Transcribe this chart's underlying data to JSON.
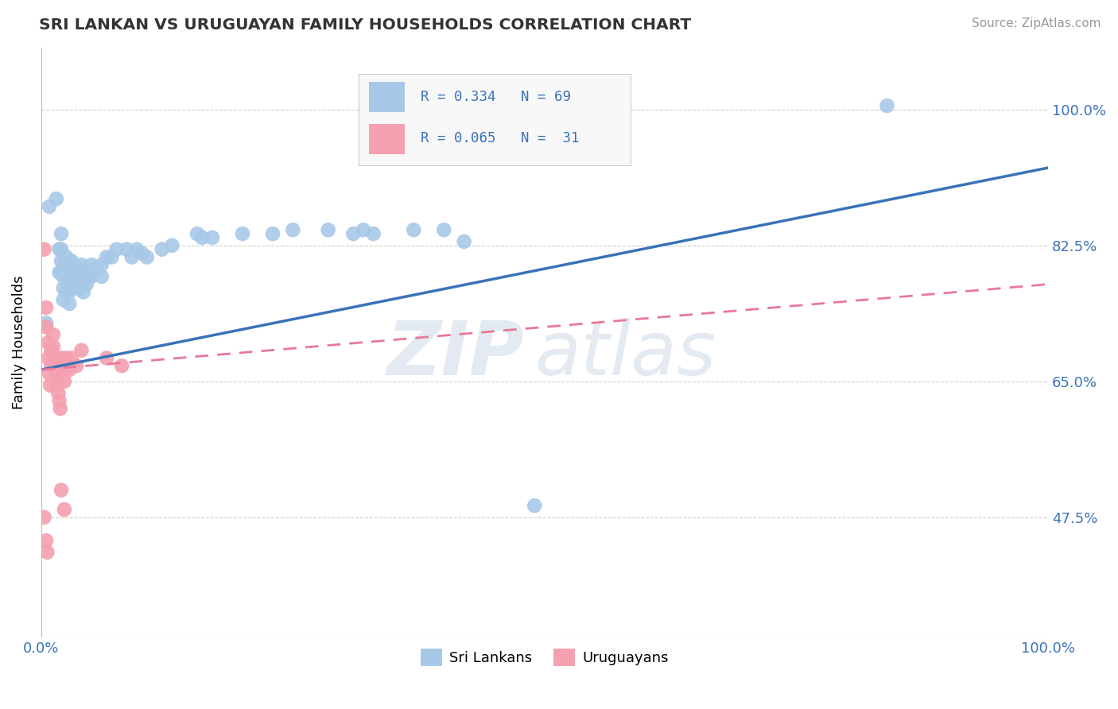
{
  "title": "SRI LANKAN VS URUGUAYAN FAMILY HOUSEHOLDS CORRELATION CHART",
  "source": "Source: ZipAtlas.com",
  "ylabel": "Family Households",
  "ytick_labels": [
    "100.0%",
    "82.5%",
    "65.0%",
    "47.5%"
  ],
  "ytick_values": [
    1.0,
    0.825,
    0.65,
    0.475
  ],
  "xlim": [
    0.0,
    1.0
  ],
  "ylim": [
    0.32,
    1.08
  ],
  "sri_color": "#a8c8e8",
  "uru_color": "#f4a0b0",
  "sri_line_color": "#3a72b8",
  "uru_line_color": "#e87898",
  "sri_line": [
    [
      0.0,
      0.665
    ],
    [
      1.0,
      0.925
    ]
  ],
  "uru_line": [
    [
      0.0,
      0.665
    ],
    [
      1.0,
      0.775
    ]
  ],
  "watermark_zip": "ZIP",
  "watermark_atlas": "atlas",
  "sri_lankans": [
    [
      0.005,
      0.725
    ],
    [
      0.008,
      0.875
    ],
    [
      0.015,
      0.885
    ],
    [
      0.018,
      0.82
    ],
    [
      0.018,
      0.79
    ],
    [
      0.02,
      0.84
    ],
    [
      0.02,
      0.82
    ],
    [
      0.02,
      0.805
    ],
    [
      0.02,
      0.79
    ],
    [
      0.022,
      0.8
    ],
    [
      0.022,
      0.785
    ],
    [
      0.022,
      0.77
    ],
    [
      0.022,
      0.755
    ],
    [
      0.025,
      0.81
    ],
    [
      0.025,
      0.795
    ],
    [
      0.025,
      0.78
    ],
    [
      0.025,
      0.765
    ],
    [
      0.028,
      0.795
    ],
    [
      0.028,
      0.78
    ],
    [
      0.028,
      0.765
    ],
    [
      0.028,
      0.75
    ],
    [
      0.03,
      0.805
    ],
    [
      0.03,
      0.79
    ],
    [
      0.03,
      0.775
    ],
    [
      0.033,
      0.8
    ],
    [
      0.033,
      0.785
    ],
    [
      0.033,
      0.77
    ],
    [
      0.035,
      0.795
    ],
    [
      0.035,
      0.78
    ],
    [
      0.038,
      0.79
    ],
    [
      0.038,
      0.775
    ],
    [
      0.04,
      0.8
    ],
    [
      0.04,
      0.785
    ],
    [
      0.04,
      0.77
    ],
    [
      0.042,
      0.78
    ],
    [
      0.042,
      0.765
    ],
    [
      0.045,
      0.79
    ],
    [
      0.045,
      0.775
    ],
    [
      0.048,
      0.785
    ],
    [
      0.05,
      0.8
    ],
    [
      0.05,
      0.785
    ],
    [
      0.055,
      0.795
    ],
    [
      0.06,
      0.8
    ],
    [
      0.06,
      0.785
    ],
    [
      0.065,
      0.81
    ],
    [
      0.07,
      0.81
    ],
    [
      0.075,
      0.82
    ],
    [
      0.085,
      0.82
    ],
    [
      0.09,
      0.81
    ],
    [
      0.095,
      0.82
    ],
    [
      0.1,
      0.815
    ],
    [
      0.105,
      0.81
    ],
    [
      0.12,
      0.82
    ],
    [
      0.13,
      0.825
    ],
    [
      0.155,
      0.84
    ],
    [
      0.16,
      0.835
    ],
    [
      0.17,
      0.835
    ],
    [
      0.2,
      0.84
    ],
    [
      0.23,
      0.84
    ],
    [
      0.25,
      0.845
    ],
    [
      0.285,
      0.845
    ],
    [
      0.31,
      0.84
    ],
    [
      0.32,
      0.845
    ],
    [
      0.33,
      0.84
    ],
    [
      0.37,
      0.845
    ],
    [
      0.4,
      0.845
    ],
    [
      0.42,
      0.83
    ],
    [
      0.49,
      0.49
    ],
    [
      0.84,
      1.005
    ]
  ],
  "uruguayans": [
    [
      0.003,
      0.82
    ],
    [
      0.005,
      0.745
    ],
    [
      0.005,
      0.72
    ],
    [
      0.007,
      0.7
    ],
    [
      0.007,
      0.68
    ],
    [
      0.008,
      0.66
    ],
    [
      0.009,
      0.645
    ],
    [
      0.01,
      0.69
    ],
    [
      0.01,
      0.67
    ],
    [
      0.012,
      0.71
    ],
    [
      0.012,
      0.695
    ],
    [
      0.013,
      0.68
    ],
    [
      0.014,
      0.665
    ],
    [
      0.015,
      0.655
    ],
    [
      0.016,
      0.645
    ],
    [
      0.017,
      0.635
    ],
    [
      0.018,
      0.625
    ],
    [
      0.019,
      0.615
    ],
    [
      0.02,
      0.68
    ],
    [
      0.022,
      0.665
    ],
    [
      0.023,
      0.65
    ],
    [
      0.025,
      0.68
    ],
    [
      0.028,
      0.665
    ],
    [
      0.03,
      0.68
    ],
    [
      0.035,
      0.67
    ],
    [
      0.04,
      0.69
    ],
    [
      0.065,
      0.68
    ],
    [
      0.08,
      0.67
    ],
    [
      0.02,
      0.51
    ],
    [
      0.023,
      0.485
    ],
    [
      0.003,
      0.475
    ],
    [
      0.005,
      0.445
    ],
    [
      0.006,
      0.43
    ]
  ]
}
